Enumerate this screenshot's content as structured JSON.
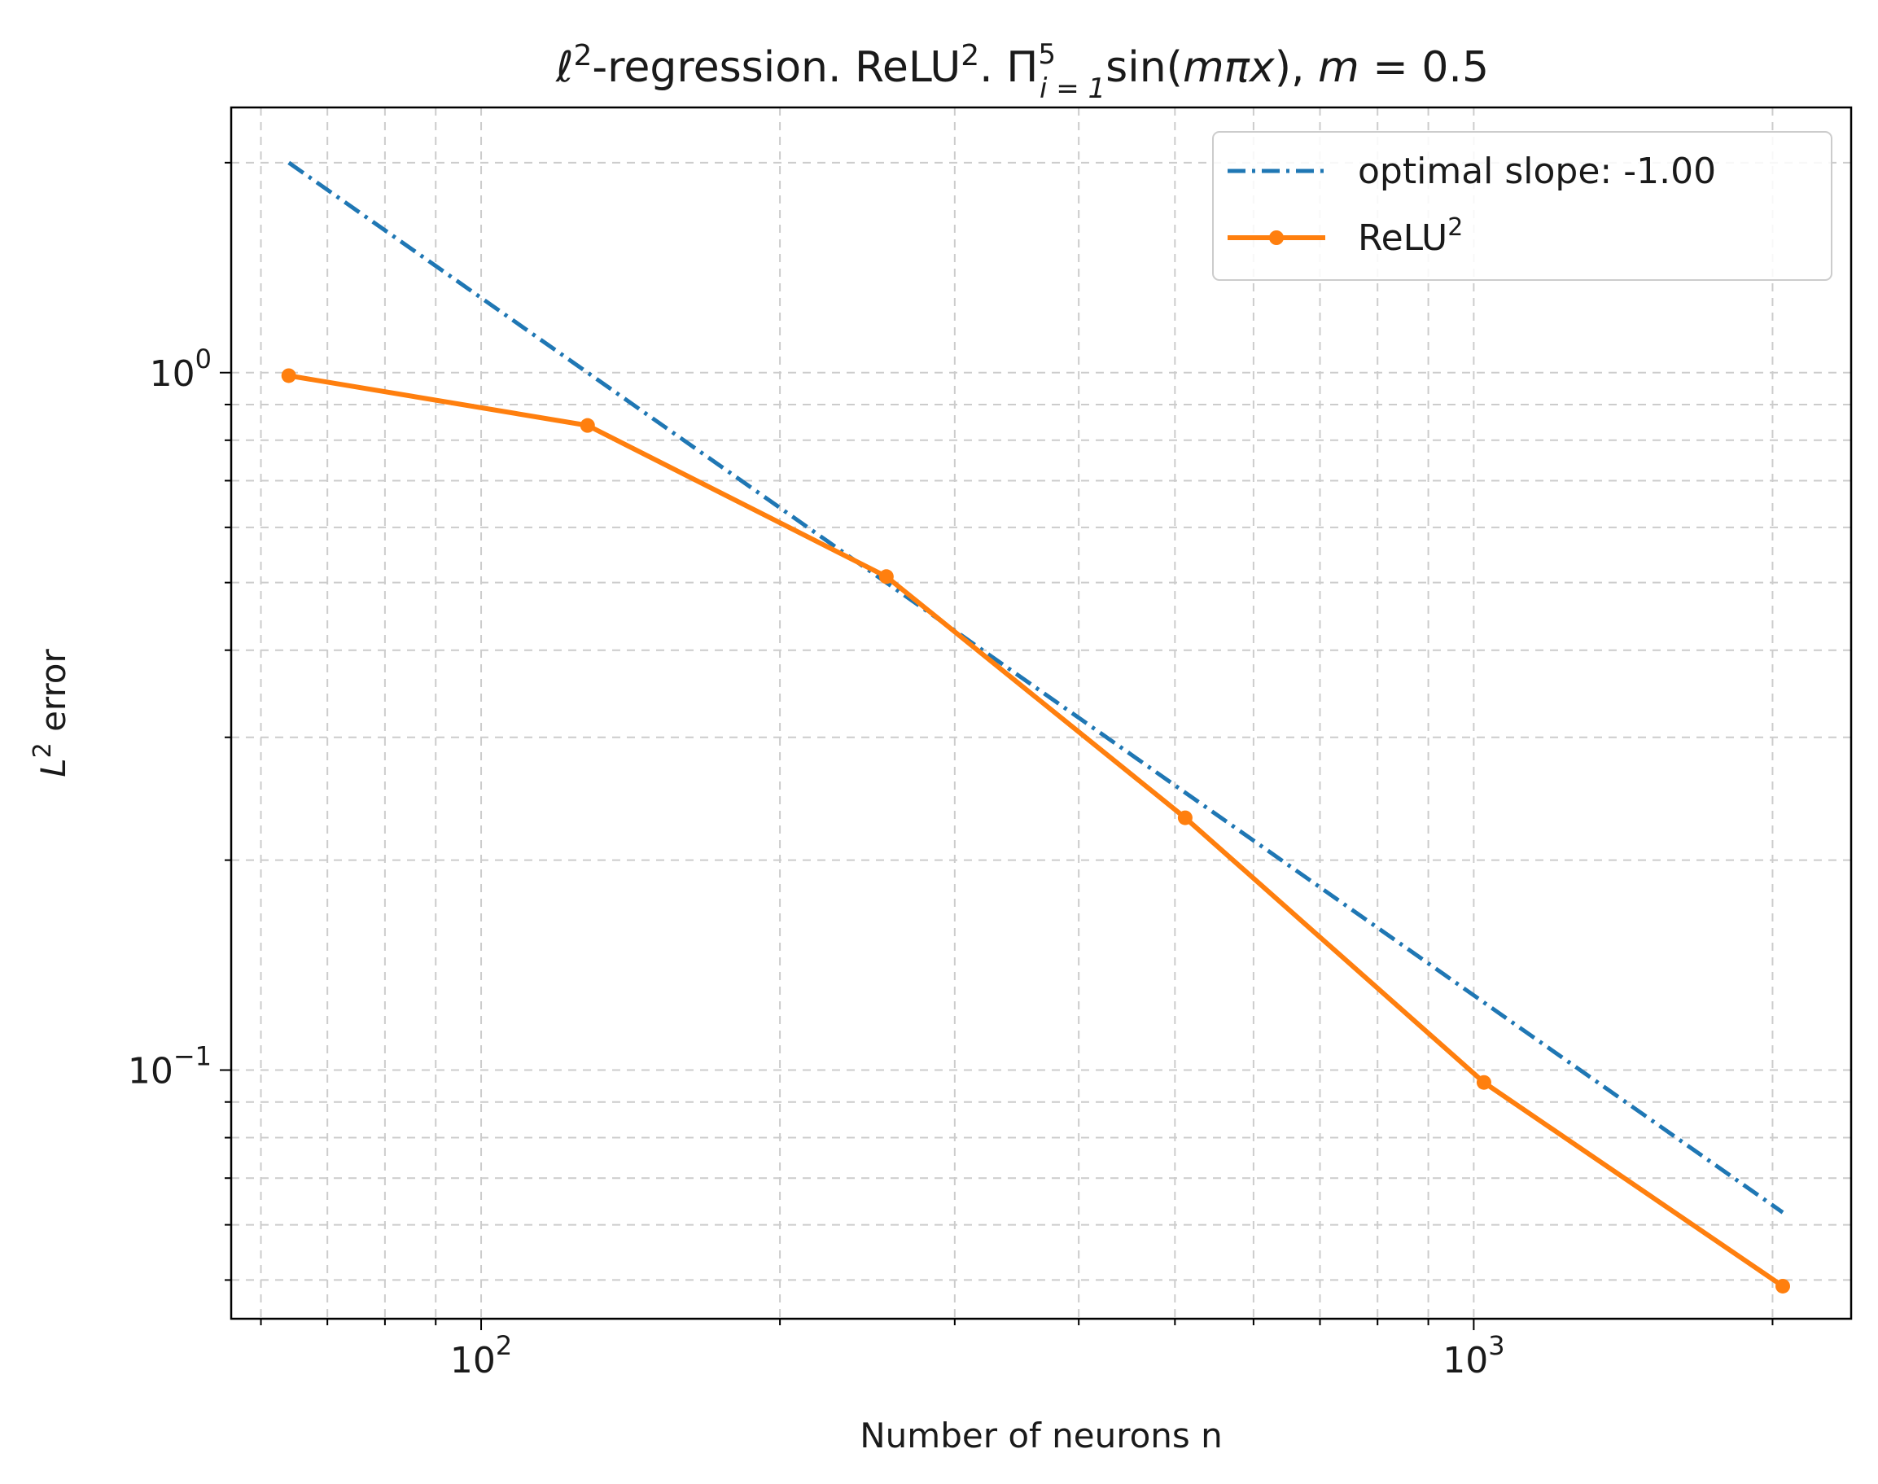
{
  "chart_data": {
    "type": "line",
    "xscale": "log",
    "yscale": "log",
    "title": {
      "prefix": "ℓ",
      "prefix_sup": "2",
      "mid": "-regression. ReLU",
      "mid_sup": "2",
      "mid2": ". Π",
      "pi_sup": "5",
      "pi_sub": "i = 1",
      "func": "sin(",
      "func_var": "mπx",
      "func_end": "), ",
      "m_var": "m",
      "m_val": " = 0.5"
    },
    "xlabel": "Number of neurons n",
    "ylabel": {
      "base": "L",
      "sup": "2",
      "rest": " error"
    },
    "xlim": [
      56,
      2400
    ],
    "ylim": [
      0.044,
      2.4
    ],
    "xticks": [
      {
        "value": 100,
        "base": "10",
        "exp": "2"
      },
      {
        "value": 1000,
        "base": "10",
        "exp": "3"
      }
    ],
    "yticks": [
      {
        "value": 1,
        "base": "10",
        "exp": "0"
      },
      {
        "value": 0.1,
        "base": "10",
        "exp": "−1"
      }
    ],
    "series": [
      {
        "name": "optimal slope: -1.00",
        "color": "#1f77b4",
        "style": "dashdot",
        "x": [
          64,
          2048
        ],
        "y": [
          2.0,
          0.0625
        ]
      },
      {
        "name": "ReLU",
        "name_sup": "2",
        "color": "#ff7f0e",
        "style": "solid-marker",
        "x": [
          64,
          128,
          256,
          512,
          1024,
          2048
        ],
        "y": [
          0.99,
          0.84,
          0.51,
          0.23,
          0.096,
          0.049
        ]
      }
    ],
    "legend_position": "top-right",
    "grid": true
  }
}
